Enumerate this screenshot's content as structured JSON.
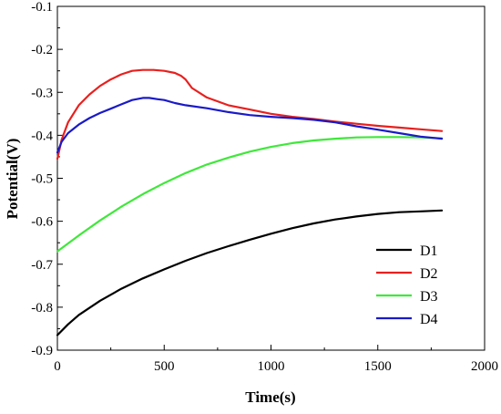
{
  "chart_data": {
    "type": "line",
    "title": "",
    "xlabel": "Time(s)",
    "ylabel": "Potential(V)",
    "xlim": [
      0,
      2000
    ],
    "ylim": [
      -0.9,
      -0.1
    ],
    "xticks": [
      0,
      500,
      1000,
      1500,
      2000
    ],
    "yticks": [
      -0.1,
      -0.2,
      -0.3,
      -0.4,
      -0.5,
      -0.6,
      -0.7,
      -0.8,
      -0.9
    ],
    "xtick_labels": [
      "0",
      "500",
      "1000",
      "1500",
      "2000"
    ],
    "ytick_labels": [
      "-0.1",
      "-0.2",
      "-0.3",
      "-0.4",
      "-0.5",
      "-0.6",
      "-0.7",
      "-0.8",
      "-0.9"
    ],
    "grid": false,
    "legend_position": "lower-right",
    "series": [
      {
        "name": "D1",
        "color": "#000000",
        "x": [
          0,
          50,
          100,
          200,
          300,
          400,
          500,
          600,
          700,
          800,
          900,
          1000,
          1100,
          1200,
          1300,
          1400,
          1500,
          1600,
          1700,
          1800
        ],
        "y": [
          -0.865,
          -0.84,
          -0.818,
          -0.785,
          -0.757,
          -0.733,
          -0.712,
          -0.692,
          -0.674,
          -0.658,
          -0.643,
          -0.629,
          -0.616,
          -0.605,
          -0.596,
          -0.589,
          -0.583,
          -0.579,
          -0.577,
          -0.575
        ]
      },
      {
        "name": "D2",
        "color": "#e8201e",
        "x": [
          0,
          20,
          50,
          100,
          150,
          200,
          250,
          300,
          350,
          400,
          450,
          500,
          550,
          580,
          600,
          630,
          700,
          800,
          900,
          1000,
          1100,
          1200,
          1300,
          1400,
          1500,
          1600,
          1700,
          1800
        ],
        "y": [
          -0.455,
          -0.41,
          -0.37,
          -0.33,
          -0.305,
          -0.285,
          -0.27,
          -0.258,
          -0.25,
          -0.248,
          -0.248,
          -0.25,
          -0.255,
          -0.262,
          -0.27,
          -0.29,
          -0.312,
          -0.33,
          -0.34,
          -0.35,
          -0.357,
          -0.362,
          -0.368,
          -0.373,
          -0.378,
          -0.382,
          -0.386,
          -0.39
        ]
      },
      {
        "name": "D3",
        "color": "#3fe83a",
        "x": [
          0,
          100,
          200,
          300,
          400,
          500,
          600,
          700,
          800,
          900,
          1000,
          1100,
          1200,
          1300,
          1400,
          1500,
          1600,
          1700,
          1800
        ],
        "y": [
          -0.67,
          -0.633,
          -0.598,
          -0.566,
          -0.537,
          -0.511,
          -0.488,
          -0.468,
          -0.452,
          -0.438,
          -0.427,
          -0.418,
          -0.412,
          -0.408,
          -0.405,
          -0.404,
          -0.404,
          -0.405,
          -0.407
        ]
      },
      {
        "name": "D4",
        "color": "#1a1ac8",
        "x": [
          0,
          20,
          50,
          100,
          150,
          200,
          250,
          300,
          350,
          400,
          430,
          470,
          500,
          550,
          600,
          700,
          800,
          900,
          1000,
          1100,
          1200,
          1300,
          1400,
          1500,
          1600,
          1700,
          1800
        ],
        "y": [
          -0.44,
          -0.415,
          -0.395,
          -0.375,
          -0.36,
          -0.348,
          -0.338,
          -0.328,
          -0.318,
          -0.313,
          -0.313,
          -0.316,
          -0.318,
          -0.325,
          -0.33,
          -0.337,
          -0.346,
          -0.353,
          -0.357,
          -0.36,
          -0.364,
          -0.37,
          -0.379,
          -0.387,
          -0.395,
          -0.403,
          -0.408
        ]
      }
    ]
  }
}
